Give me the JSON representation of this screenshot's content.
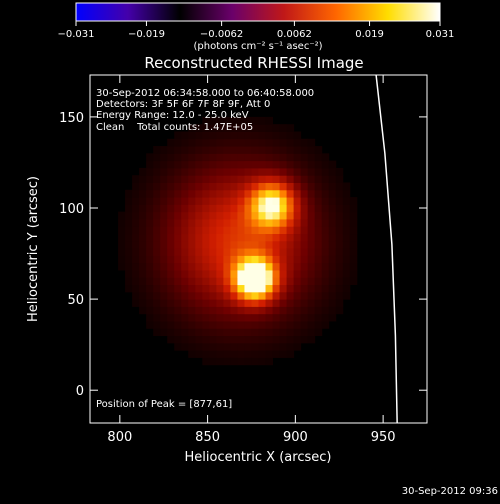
{
  "chart_data": {
    "type": "heatmap",
    "title": "Reconstructed RHESSI Image",
    "xlabel": "Heliocentric X (arcsec)",
    "ylabel": "Heliocentric Y (arcsec)",
    "xlim": [
      783,
      975
    ],
    "ylim": [
      -18,
      173
    ],
    "x_ticks": [
      800,
      850,
      900,
      950
    ],
    "y_ticks": [
      0,
      50,
      100,
      150
    ],
    "colorbar": {
      "range": [
        -0.031,
        0.031
      ],
      "tick_values": [
        -0.031,
        -0.019,
        -0.0062,
        0.0062,
        0.019,
        0.031
      ],
      "tick_labels": [
        "−0.031",
        "−0.019",
        "−0.0062",
        "0.0062",
        "0.019",
        "0.031"
      ],
      "units": "(photons cm⁻² s⁻¹ asec⁻²)",
      "colormap": [
        "#0000ff",
        "#4400aa",
        "#000000",
        "#6a006a",
        "#c01818",
        "#ff6600",
        "#ffdd00",
        "#ffffff"
      ]
    },
    "annotations": [
      "30-Sep-2012 06:34:58.000 to 06:40:58.000",
      "Detectors: 3F 5F 6F 7F 8F 9F, Att 0",
      "Energy Range: 12.0 - 25.0 keV",
      "Clean    Total counts: 1.47E+05"
    ],
    "peak_label": "Position of Peak = [877,61]",
    "peak": [
      877,
      61
    ],
    "sources": [
      {
        "x": 877,
        "y": 61,
        "amp": 1.0,
        "sigma": 8
      },
      {
        "x": 887,
        "y": 102,
        "amp": 0.7,
        "sigma": 9
      },
      {
        "x": 868,
        "y": 82,
        "amp": 0.55,
        "sigma": 30
      }
    ],
    "limb_curve": [
      [
        946,
        173
      ],
      [
        951,
        130
      ],
      [
        955,
        80
      ],
      [
        957,
        30
      ],
      [
        958,
        -18
      ]
    ],
    "timestamp": "30-Sep-2012 09:36"
  }
}
